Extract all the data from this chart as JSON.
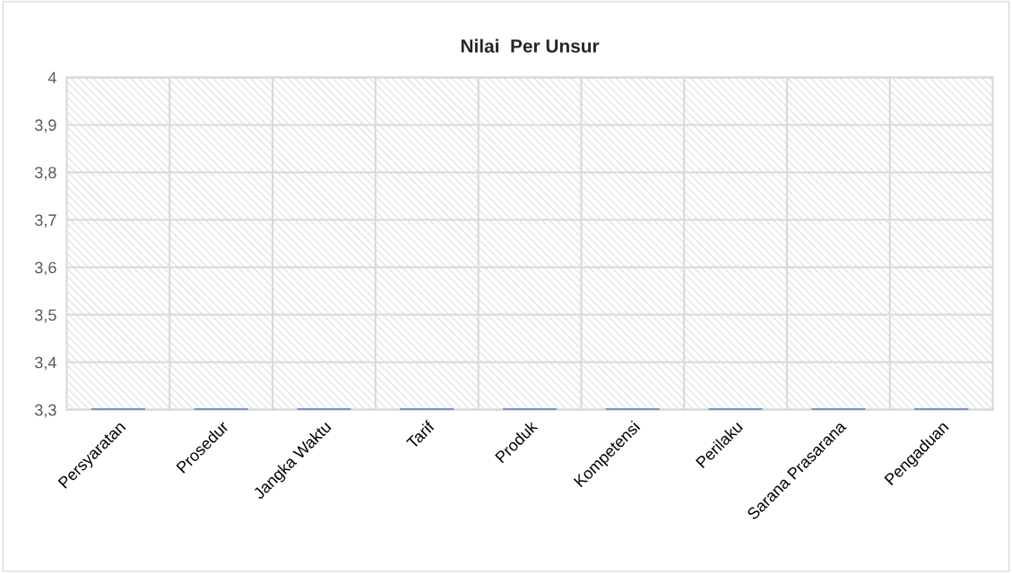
{
  "chart_data": {
    "type": "bar",
    "title": "Nilai  Per Unsur",
    "categories": [
      "Persyaratan",
      "Prosedur",
      "Jangka Waktu",
      "Tarif",
      "Produk",
      "Kompetensi",
      "Perilaku",
      "Sarana Prasarana",
      "Pengaduan"
    ],
    "values": [
      3.3,
      3.3,
      3.3,
      3.3,
      3.3,
      3.3,
      3.3,
      3.3,
      3.3
    ],
    "color": "#4472c4",
    "ylim": [
      3.3,
      4
    ],
    "yticks": [
      {
        "value": 3.3,
        "label": "3,3"
      },
      {
        "value": 3.4,
        "label": "3,4"
      },
      {
        "value": 3.5,
        "label": "3,5"
      },
      {
        "value": 3.6,
        "label": "3,6"
      },
      {
        "value": 3.7,
        "label": "3,7"
      },
      {
        "value": 3.8,
        "label": "3,8"
      },
      {
        "value": 3.9,
        "label": "3,9"
      },
      {
        "value": 4,
        "label": "4"
      }
    ],
    "grid": true
  }
}
